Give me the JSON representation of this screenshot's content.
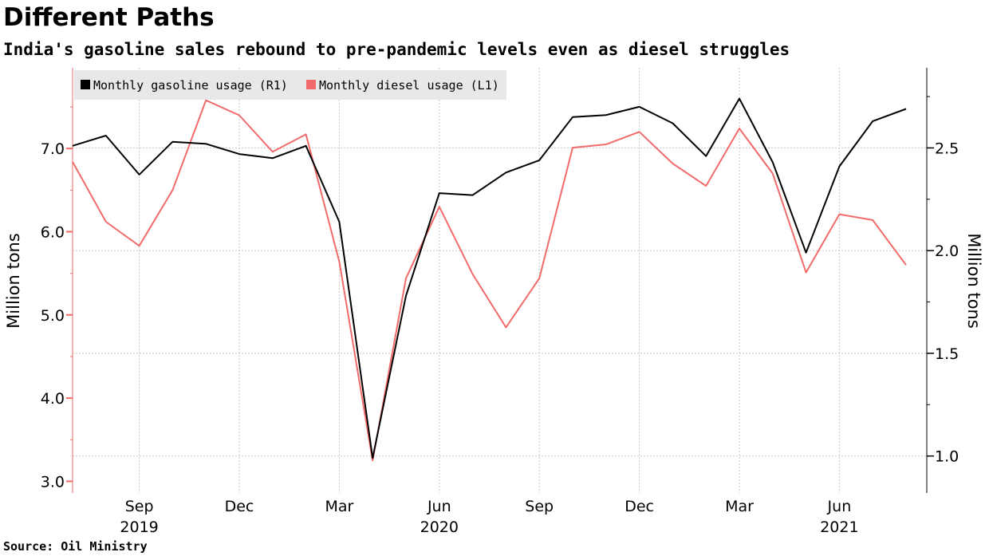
{
  "title": "Different Paths",
  "subtitle": "India's gasoline sales rebound to pre-pandemic levels even as diesel struggles",
  "source": "Source: Oil Ministry",
  "chart_data": {
    "type": "line",
    "x": [
      "2019-07",
      "2019-08",
      "2019-09",
      "2019-10",
      "2019-11",
      "2019-12",
      "2020-01",
      "2020-02",
      "2020-03",
      "2020-04",
      "2020-05",
      "2020-06",
      "2020-07",
      "2020-08",
      "2020-09",
      "2020-10",
      "2020-11",
      "2020-12",
      "2021-01",
      "2021-02",
      "2021-03",
      "2021-04",
      "2021-05",
      "2021-06",
      "2021-07",
      "2021-08"
    ],
    "x_ticks": [
      {
        "date": "2019-09",
        "label": "Sep",
        "year": "2019"
      },
      {
        "date": "2019-12",
        "label": "Dec",
        "year": ""
      },
      {
        "date": "2020-03",
        "label": "Mar",
        "year": ""
      },
      {
        "date": "2020-06",
        "label": "Jun",
        "year": "2020"
      },
      {
        "date": "2020-09",
        "label": "Sep",
        "year": ""
      },
      {
        "date": "2020-12",
        "label": "Dec",
        "year": ""
      },
      {
        "date": "2021-03",
        "label": "Mar",
        "year": ""
      },
      {
        "date": "2021-06",
        "label": "Jun",
        "year": "2021"
      }
    ],
    "series": [
      {
        "name": "Monthly gasoline usage (R1)",
        "axis": "right",
        "color": "#000000",
        "values": [
          2.51,
          2.56,
          2.37,
          2.53,
          2.52,
          2.47,
          2.45,
          2.51,
          2.14,
          0.99,
          1.78,
          2.28,
          2.27,
          2.38,
          2.44,
          2.65,
          2.66,
          2.7,
          2.62,
          2.46,
          2.74,
          2.43,
          1.99,
          2.41,
          2.63,
          2.69
        ]
      },
      {
        "name": "Monthly diesel usage (L1)",
        "axis": "left",
        "color": "#f26b6b",
        "values": [
          6.84,
          6.12,
          5.83,
          6.5,
          7.58,
          7.4,
          6.96,
          7.17,
          5.64,
          3.25,
          5.44,
          6.3,
          5.49,
          4.85,
          5.44,
          7.01,
          7.05,
          7.2,
          6.82,
          6.55,
          7.24,
          6.7,
          5.51,
          6.21,
          6.14,
          5.6
        ]
      }
    ],
    "y_left": {
      "label": "Million tons",
      "range": [
        2.86,
        7.97
      ],
      "ticks": [
        "3.0",
        "4.0",
        "5.0",
        "6.0",
        "7.0"
      ],
      "tick_color": "#f26b6b"
    },
    "y_right": {
      "label": "Million tons",
      "range": [
        0.82,
        2.89
      ],
      "ticks": [
        "1.0",
        "1.5",
        "2.0",
        "2.5"
      ]
    },
    "grid": true,
    "legend_placement": "top-left"
  }
}
